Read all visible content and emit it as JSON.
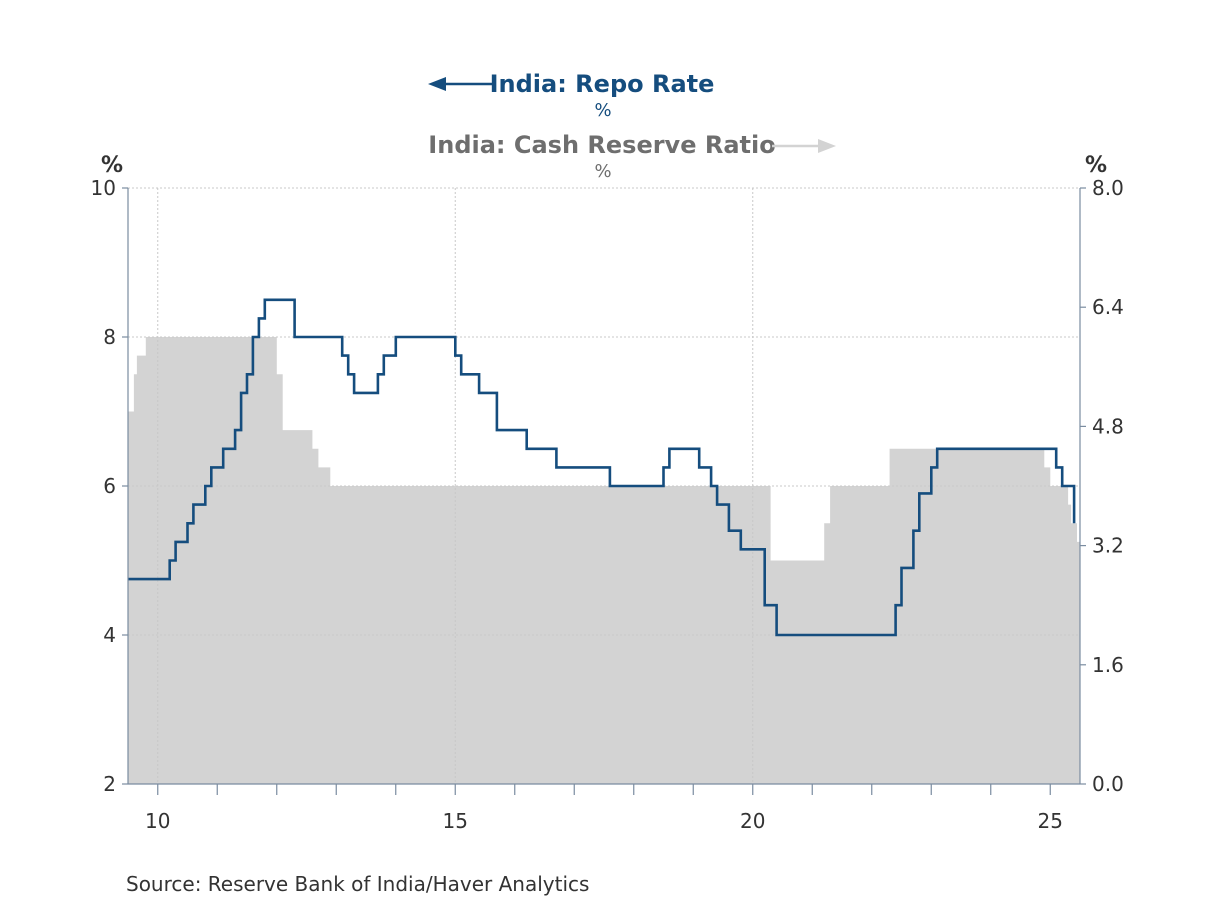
{
  "chart_data": {
    "type": "line",
    "source": "Source:  Reserve Bank of India/Haver Analytics",
    "left_axis_unit": "%",
    "right_axis_unit": "%",
    "x_ticks": [
      "10",
      "15",
      "20",
      "25"
    ],
    "x_range": [
      2009.5,
      2025.5
    ],
    "left_ylim": [
      2,
      10
    ],
    "left_yticks": [
      "2",
      "4",
      "6",
      "8",
      "10"
    ],
    "right_ylim": [
      0.0,
      8.0
    ],
    "right_yticks": [
      "0.0",
      "1.6",
      "3.2",
      "4.8",
      "6.4",
      "8.0"
    ],
    "grid": true,
    "series": [
      {
        "name": "India: Repo Rate",
        "unit": "%",
        "axis": "left",
        "style": "step-line",
        "color": "#154d7e",
        "points": [
          [
            2009.5,
            4.75
          ],
          [
            2010.2,
            5.0
          ],
          [
            2010.3,
            5.25
          ],
          [
            2010.5,
            5.5
          ],
          [
            2010.6,
            5.75
          ],
          [
            2010.8,
            6.0
          ],
          [
            2010.9,
            6.25
          ],
          [
            2011.1,
            6.5
          ],
          [
            2011.3,
            6.75
          ],
          [
            2011.4,
            7.25
          ],
          [
            2011.5,
            7.5
          ],
          [
            2011.6,
            8.0
          ],
          [
            2011.7,
            8.25
          ],
          [
            2011.8,
            8.5
          ],
          [
            2012.3,
            8.0
          ],
          [
            2013.1,
            7.75
          ],
          [
            2013.2,
            7.5
          ],
          [
            2013.3,
            7.25
          ],
          [
            2013.7,
            7.5
          ],
          [
            2013.8,
            7.75
          ],
          [
            2014.0,
            8.0
          ],
          [
            2015.0,
            7.75
          ],
          [
            2015.1,
            7.5
          ],
          [
            2015.4,
            7.25
          ],
          [
            2015.7,
            6.75
          ],
          [
            2016.2,
            6.5
          ],
          [
            2016.7,
            6.25
          ],
          [
            2017.6,
            6.0
          ],
          [
            2018.5,
            6.25
          ],
          [
            2018.6,
            6.5
          ],
          [
            2019.1,
            6.25
          ],
          [
            2019.3,
            6.0
          ],
          [
            2019.4,
            5.75
          ],
          [
            2019.6,
            5.4
          ],
          [
            2019.8,
            5.15
          ],
          [
            2020.2,
            4.4
          ],
          [
            2020.4,
            4.0
          ],
          [
            2022.4,
            4.4
          ],
          [
            2022.5,
            4.9
          ],
          [
            2022.7,
            5.4
          ],
          [
            2022.8,
            5.9
          ],
          [
            2023.0,
            6.25
          ],
          [
            2023.1,
            6.5
          ],
          [
            2025.1,
            6.25
          ],
          [
            2025.2,
            6.0
          ],
          [
            2025.4,
            5.5
          ]
        ]
      },
      {
        "name": "India: Cash Reserve Ratio",
        "unit": "%",
        "axis": "right",
        "style": "step-area",
        "color": "#d3d3d3",
        "points": [
          [
            2009.5,
            5.0
          ],
          [
            2009.6,
            5.5
          ],
          [
            2009.65,
            5.75
          ],
          [
            2009.8,
            6.0
          ],
          [
            2012.0,
            5.5
          ],
          [
            2012.1,
            4.75
          ],
          [
            2012.6,
            4.5
          ],
          [
            2012.7,
            4.25
          ],
          [
            2012.9,
            4.0
          ],
          [
            2020.3,
            3.0
          ],
          [
            2021.2,
            3.5
          ],
          [
            2021.3,
            4.0
          ],
          [
            2022.3,
            4.5
          ],
          [
            2024.9,
            4.25
          ],
          [
            2025.0,
            4.0
          ],
          [
            2025.2,
            4.0
          ],
          [
            2025.3,
            3.75
          ],
          [
            2025.35,
            3.5
          ],
          [
            2025.45,
            3.25
          ],
          [
            2025.5,
            3.25
          ]
        ]
      }
    ],
    "legend": [
      {
        "name": "India: Repo Rate",
        "unit": "%",
        "color": "#154d7e",
        "arrow": "left"
      },
      {
        "name": "India: Cash Reserve Ratio",
        "unit": "%",
        "color": "#6e6e6e",
        "arrow": "right",
        "arrow_color": "#d3d3d3"
      }
    ]
  }
}
